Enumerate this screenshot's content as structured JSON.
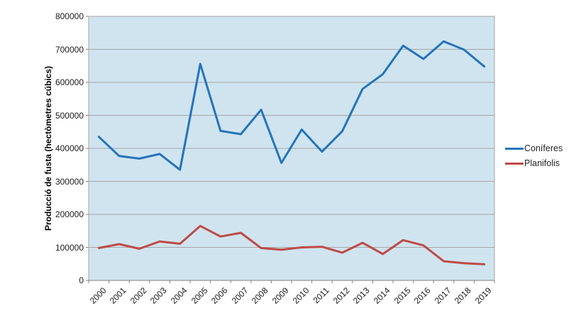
{
  "chart_data": {
    "type": "line",
    "title": "",
    "xlabel": "",
    "ylabel": "Producció de fusta (hectòmetres cúbics)",
    "x": [
      "2000",
      "2001",
      "2002",
      "2003",
      "2004",
      "2005",
      "2006",
      "2007",
      "2008",
      "2009",
      "2010",
      "2011",
      "2012",
      "2013",
      "2014",
      "2015",
      "2016",
      "2017",
      "2018",
      "2019"
    ],
    "series": [
      {
        "name": "Coníferes",
        "color": "#2574BA",
        "values": [
          435000,
          377000,
          369000,
          383000,
          335000,
          656000,
          453000,
          443000,
          517000,
          356000,
          457000,
          390000,
          452000,
          580000,
          625000,
          711000,
          671000,
          724000,
          699000,
          648000
        ]
      },
      {
        "name": "Planifolis",
        "color": "#BE4A45",
        "values": [
          98000,
          110000,
          96000,
          118000,
          111000,
          165000,
          133000,
          144000,
          98000,
          93000,
          100000,
          102000,
          84000,
          114000,
          80000,
          122000,
          106000,
          58000,
          52000,
          49000
        ]
      }
    ],
    "ylim": [
      0,
      800000
    ],
    "ytick_step": 100000,
    "grid": "horizontal",
    "legend_position": "right",
    "colors": {
      "plot_bg": "#CFE4EF",
      "gridline": "#A6A6A6",
      "axis_line": "#7F7F7F",
      "tick_text": "#1a1a1a"
    }
  }
}
